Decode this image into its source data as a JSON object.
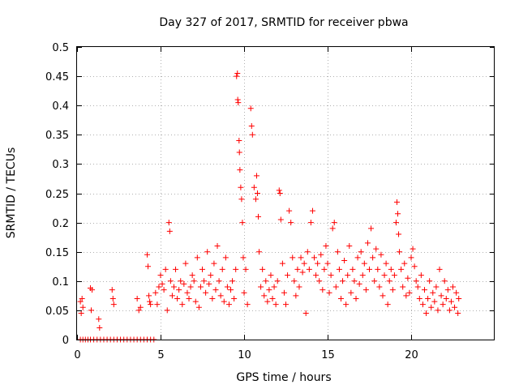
{
  "chart_data": {
    "type": "scatter",
    "title": "Day 327 of 2017, SRMTID for receiver pbwa",
    "xlabel": "GPS time / hours",
    "ylabel": "SRMTID / TECUs",
    "xlim": [
      0,
      25
    ],
    "ylim": [
      0,
      0.5
    ],
    "x_ticks": [
      0,
      5,
      10,
      15,
      20
    ],
    "y_ticks": [
      0,
      0.05,
      0.1,
      0.15,
      0.2,
      0.25,
      0.3,
      0.35,
      0.4,
      0.45,
      0.5
    ],
    "x_tick_labels": [
      "0",
      "5",
      "10",
      "15",
      "20"
    ],
    "y_tick_labels": [
      "0",
      "0.05",
      "0.1",
      "0.15",
      "0.2",
      "0.25",
      "0.3",
      "0.35",
      "0.4",
      "0.45",
      "0.5"
    ],
    "grid": true,
    "marker": "plus",
    "color": "#ff0000",
    "series": [
      {
        "name": "SRMTID",
        "points": [
          [
            0.2,
            0.0
          ],
          [
            0.35,
            0.0
          ],
          [
            0.5,
            0.0
          ],
          [
            0.65,
            0.0
          ],
          [
            0.8,
            0.0
          ],
          [
            1.0,
            0.0
          ],
          [
            1.2,
            0.0
          ],
          [
            1.4,
            0.0
          ],
          [
            1.6,
            0.0
          ],
          [
            1.8,
            0.0
          ],
          [
            2.0,
            0.0
          ],
          [
            2.2,
            0.0
          ],
          [
            2.4,
            0.0
          ],
          [
            2.6,
            0.0
          ],
          [
            2.8,
            0.0
          ],
          [
            3.0,
            0.0
          ],
          [
            3.2,
            0.0
          ],
          [
            3.4,
            0.0
          ],
          [
            3.6,
            0.0
          ],
          [
            3.8,
            0.0
          ],
          [
            4.0,
            0.0
          ],
          [
            4.2,
            0.0
          ],
          [
            4.4,
            0.0
          ],
          [
            4.6,
            0.0
          ],
          [
            0.2,
            0.065
          ],
          [
            0.25,
            0.045
          ],
          [
            0.3,
            0.07
          ],
          [
            0.35,
            0.055
          ],
          [
            0.8,
            0.088
          ],
          [
            0.85,
            0.05
          ],
          [
            0.9,
            0.085
          ],
          [
            1.3,
            0.035
          ],
          [
            1.35,
            0.02
          ],
          [
            2.1,
            0.085
          ],
          [
            2.15,
            0.07
          ],
          [
            2.2,
            0.06
          ],
          [
            3.6,
            0.07
          ],
          [
            3.7,
            0.05
          ],
          [
            3.8,
            0.055
          ],
          [
            4.2,
            0.145
          ],
          [
            4.25,
            0.125
          ],
          [
            4.3,
            0.075
          ],
          [
            4.35,
            0.065
          ],
          [
            4.4,
            0.06
          ],
          [
            4.7,
            0.08
          ],
          [
            4.8,
            0.06
          ],
          [
            4.9,
            0.09
          ],
          [
            5.0,
            0.11
          ],
          [
            5.1,
            0.095
          ],
          [
            5.2,
            0.085
          ],
          [
            5.3,
            0.12
          ],
          [
            5.4,
            0.05
          ],
          [
            5.5,
            0.2
          ],
          [
            5.55,
            0.185
          ],
          [
            5.6,
            0.1
          ],
          [
            5.7,
            0.075
          ],
          [
            5.8,
            0.09
          ],
          [
            5.9,
            0.12
          ],
          [
            6.0,
            0.07
          ],
          [
            6.1,
            0.085
          ],
          [
            6.2,
            0.1
          ],
          [
            6.3,
            0.06
          ],
          [
            6.4,
            0.095
          ],
          [
            6.5,
            0.13
          ],
          [
            6.6,
            0.08
          ],
          [
            6.7,
            0.07
          ],
          [
            6.8,
            0.09
          ],
          [
            6.9,
            0.11
          ],
          [
            7.0,
            0.1
          ],
          [
            7.1,
            0.065
          ],
          [
            7.2,
            0.14
          ],
          [
            7.3,
            0.055
          ],
          [
            7.4,
            0.09
          ],
          [
            7.5,
            0.12
          ],
          [
            7.6,
            0.1
          ],
          [
            7.7,
            0.08
          ],
          [
            7.8,
            0.15
          ],
          [
            7.9,
            0.095
          ],
          [
            8.0,
            0.11
          ],
          [
            8.1,
            0.07
          ],
          [
            8.2,
            0.13
          ],
          [
            8.3,
            0.085
          ],
          [
            8.4,
            0.16
          ],
          [
            8.5,
            0.1
          ],
          [
            8.6,
            0.075
          ],
          [
            8.7,
            0.12
          ],
          [
            8.8,
            0.065
          ],
          [
            8.9,
            0.14
          ],
          [
            9.0,
            0.09
          ],
          [
            9.1,
            0.06
          ],
          [
            9.2,
            0.085
          ],
          [
            9.3,
            0.1
          ],
          [
            9.4,
            0.07
          ],
          [
            9.5,
            0.12
          ],
          [
            9.55,
            0.45
          ],
          [
            9.6,
            0.455
          ],
          [
            9.62,
            0.41
          ],
          [
            9.65,
            0.405
          ],
          [
            9.7,
            0.34
          ],
          [
            9.72,
            0.32
          ],
          [
            9.75,
            0.29
          ],
          [
            9.8,
            0.26
          ],
          [
            9.85,
            0.24
          ],
          [
            9.9,
            0.2
          ],
          [
            9.95,
            0.14
          ],
          [
            10.0,
            0.08
          ],
          [
            10.1,
            0.12
          ],
          [
            10.2,
            0.06
          ],
          [
            10.4,
            0.395
          ],
          [
            10.45,
            0.365
          ],
          [
            10.5,
            0.35
          ],
          [
            10.6,
            0.26
          ],
          [
            10.7,
            0.24
          ],
          [
            10.75,
            0.28
          ],
          [
            10.8,
            0.25
          ],
          [
            10.85,
            0.21
          ],
          [
            10.9,
            0.15
          ],
          [
            11.0,
            0.09
          ],
          [
            11.1,
            0.12
          ],
          [
            11.2,
            0.075
          ],
          [
            11.3,
            0.1
          ],
          [
            11.4,
            0.065
          ],
          [
            11.5,
            0.085
          ],
          [
            11.6,
            0.11
          ],
          [
            11.7,
            0.07
          ],
          [
            11.8,
            0.09
          ],
          [
            11.9,
            0.06
          ],
          [
            12.0,
            0.1
          ],
          [
            12.1,
            0.255
          ],
          [
            12.15,
            0.25
          ],
          [
            12.2,
            0.205
          ],
          [
            12.3,
            0.13
          ],
          [
            12.4,
            0.08
          ],
          [
            12.5,
            0.06
          ],
          [
            12.6,
            0.11
          ],
          [
            12.7,
            0.22
          ],
          [
            12.8,
            0.2
          ],
          [
            12.9,
            0.14
          ],
          [
            13.0,
            0.1
          ],
          [
            13.1,
            0.075
          ],
          [
            13.2,
            0.12
          ],
          [
            13.3,
            0.09
          ],
          [
            13.4,
            0.14
          ],
          [
            13.5,
            0.115
          ],
          [
            13.6,
            0.13
          ],
          [
            13.7,
            0.045
          ],
          [
            13.8,
            0.15
          ],
          [
            13.9,
            0.12
          ],
          [
            14.0,
            0.2
          ],
          [
            14.1,
            0.22
          ],
          [
            14.2,
            0.14
          ],
          [
            14.3,
            0.11
          ],
          [
            14.4,
            0.13
          ],
          [
            14.5,
            0.1
          ],
          [
            14.6,
            0.145
          ],
          [
            14.7,
            0.085
          ],
          [
            14.8,
            0.12
          ],
          [
            14.9,
            0.16
          ],
          [
            15.0,
            0.13
          ],
          [
            15.1,
            0.08
          ],
          [
            15.2,
            0.11
          ],
          [
            15.3,
            0.19
          ],
          [
            15.4,
            0.2
          ],
          [
            15.5,
            0.09
          ],
          [
            15.6,
            0.15
          ],
          [
            15.7,
            0.12
          ],
          [
            15.8,
            0.07
          ],
          [
            15.9,
            0.1
          ],
          [
            16.0,
            0.135
          ],
          [
            16.1,
            0.06
          ],
          [
            16.2,
            0.11
          ],
          [
            16.3,
            0.16
          ],
          [
            16.4,
            0.08
          ],
          [
            16.5,
            0.12
          ],
          [
            16.6,
            0.1
          ],
          [
            16.7,
            0.07
          ],
          [
            16.8,
            0.14
          ],
          [
            16.9,
            0.095
          ],
          [
            17.0,
            0.15
          ],
          [
            17.1,
            0.11
          ],
          [
            17.2,
            0.13
          ],
          [
            17.3,
            0.085
          ],
          [
            17.4,
            0.165
          ],
          [
            17.5,
            0.12
          ],
          [
            17.6,
            0.19
          ],
          [
            17.7,
            0.14
          ],
          [
            17.8,
            0.1
          ],
          [
            17.9,
            0.155
          ],
          [
            18.0,
            0.12
          ],
          [
            18.1,
            0.09
          ],
          [
            18.2,
            0.145
          ],
          [
            18.3,
            0.075
          ],
          [
            18.4,
            0.11
          ],
          [
            18.5,
            0.13
          ],
          [
            18.6,
            0.06
          ],
          [
            18.7,
            0.1
          ],
          [
            18.8,
            0.12
          ],
          [
            18.9,
            0.085
          ],
          [
            19.0,
            0.11
          ],
          [
            19.1,
            0.2
          ],
          [
            19.15,
            0.235
          ],
          [
            19.2,
            0.215
          ],
          [
            19.25,
            0.18
          ],
          [
            19.3,
            0.15
          ],
          [
            19.4,
            0.12
          ],
          [
            19.5,
            0.09
          ],
          [
            19.6,
            0.13
          ],
          [
            19.7,
            0.075
          ],
          [
            19.8,
            0.105
          ],
          [
            19.9,
            0.08
          ],
          [
            20.0,
            0.14
          ],
          [
            20.1,
            0.155
          ],
          [
            20.2,
            0.125
          ],
          [
            20.3,
            0.1
          ],
          [
            20.4,
            0.09
          ],
          [
            20.5,
            0.07
          ],
          [
            20.6,
            0.11
          ],
          [
            20.7,
            0.06
          ],
          [
            20.8,
            0.085
          ],
          [
            20.9,
            0.045
          ],
          [
            21.0,
            0.07
          ],
          [
            21.1,
            0.1
          ],
          [
            21.2,
            0.055
          ],
          [
            21.3,
            0.08
          ],
          [
            21.4,
            0.065
          ],
          [
            21.5,
            0.09
          ],
          [
            21.6,
            0.05
          ],
          [
            21.7,
            0.12
          ],
          [
            21.8,
            0.075
          ],
          [
            21.9,
            0.06
          ],
          [
            22.0,
            0.1
          ],
          [
            22.1,
            0.07
          ],
          [
            22.2,
            0.085
          ],
          [
            22.3,
            0.05
          ],
          [
            22.4,
            0.065
          ],
          [
            22.5,
            0.09
          ],
          [
            22.6,
            0.055
          ],
          [
            22.7,
            0.08
          ],
          [
            22.8,
            0.045
          ],
          [
            22.85,
            0.07
          ]
        ]
      }
    ]
  }
}
